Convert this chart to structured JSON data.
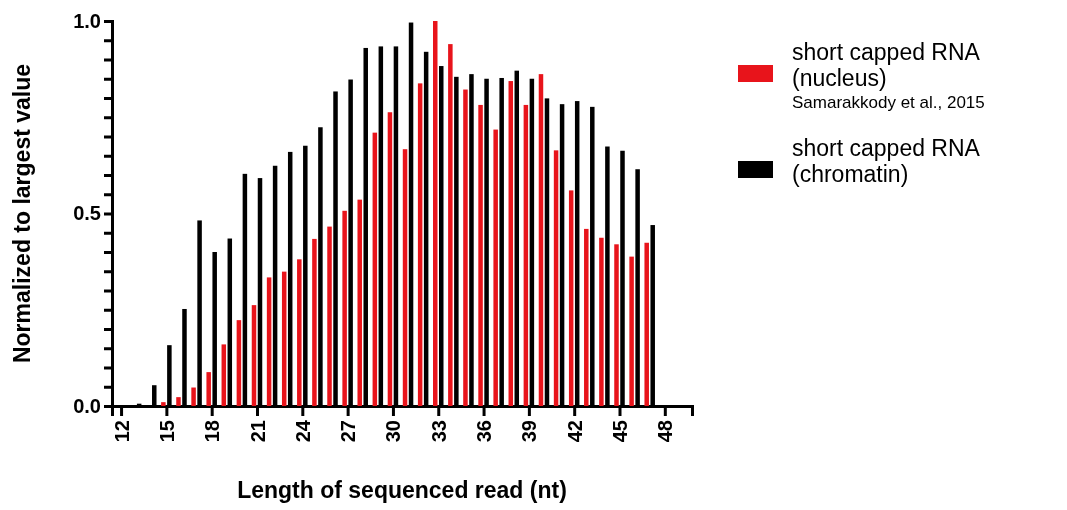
{
  "chart_data": {
    "type": "bar",
    "xlabel": "Length of sequenced read (nt)",
    "ylabel": "Normalized to largest value",
    "xlim": [
      11.4,
      49.8
    ],
    "xticks": [
      12,
      15,
      18,
      21,
      24,
      27,
      30,
      33,
      36,
      39,
      42,
      45,
      48
    ],
    "ylim": [
      0,
      1.0
    ],
    "yticks": [
      {
        "value": 0,
        "label": "0.0"
      },
      {
        "value": 0.05,
        "label": null
      },
      {
        "value": 0.1,
        "label": null
      },
      {
        "value": 0.15,
        "label": null
      },
      {
        "value": 0.2,
        "label": null
      },
      {
        "value": 0.25,
        "label": null
      },
      {
        "value": 0.3,
        "label": null
      },
      {
        "value": 0.35,
        "label": null
      },
      {
        "value": 0.4,
        "label": null
      },
      {
        "value": 0.45,
        "label": null
      },
      {
        "value": 0.5,
        "label": "0.5"
      },
      {
        "value": 0.55,
        "label": null
      },
      {
        "value": 0.6,
        "label": null
      },
      {
        "value": 0.65,
        "label": null
      },
      {
        "value": 0.7,
        "label": null
      },
      {
        "value": 0.75,
        "label": null
      },
      {
        "value": 0.8,
        "label": null
      },
      {
        "value": 0.85,
        "label": null
      },
      {
        "value": 0.9,
        "label": null
      },
      {
        "value": 0.95,
        "label": null
      },
      {
        "value": 1.0,
        "label": "1.0"
      }
    ],
    "series": [
      {
        "name": "short capped RNA (nucleus)",
        "color": "#e8141b",
        "x": [
          15,
          16,
          17,
          18,
          19,
          20,
          21,
          22,
          23,
          24,
          25,
          26,
          27,
          28,
          29,
          30,
          31,
          32,
          33,
          34,
          35,
          36,
          37,
          38,
          39,
          40,
          41,
          42,
          43,
          44,
          45,
          46,
          47
        ],
        "values": [
          0.01,
          0.023,
          0.048,
          0.088,
          0.16,
          0.223,
          0.262,
          0.334,
          0.349,
          0.381,
          0.434,
          0.466,
          0.507,
          0.536,
          0.71,
          0.763,
          0.667,
          0.838,
          1.0,
          0.94,
          0.822,
          0.782,
          0.718,
          0.844,
          0.782,
          0.862,
          0.664,
          0.56,
          0.46,
          0.437,
          0.42,
          0.388,
          0.424
        ]
      },
      {
        "name": "short capped RNA (chromatin)",
        "color": "#000000",
        "x": [
          13,
          14,
          15,
          16,
          17,
          18,
          19,
          20,
          21,
          22,
          23,
          24,
          25,
          26,
          27,
          28,
          29,
          30,
          31,
          32,
          33,
          34,
          35,
          36,
          37,
          38,
          39,
          40,
          41,
          42,
          43,
          44,
          45,
          46,
          47
        ],
        "values": [
          0.006,
          0.054,
          0.158,
          0.252,
          0.482,
          0.4,
          0.435,
          0.603,
          0.592,
          0.624,
          0.66,
          0.676,
          0.724,
          0.817,
          0.848,
          0.93,
          0.934,
          0.934,
          0.996,
          0.92,
          0.883,
          0.855,
          0.862,
          0.85,
          0.852,
          0.871,
          0.85,
          0.799,
          0.784,
          0.792,
          0.777,
          0.674,
          0.663,
          0.615,
          0.47
        ]
      }
    ],
    "legend": "right",
    "annotations": [
      "Samarakkody et al., 2015"
    ]
  }
}
